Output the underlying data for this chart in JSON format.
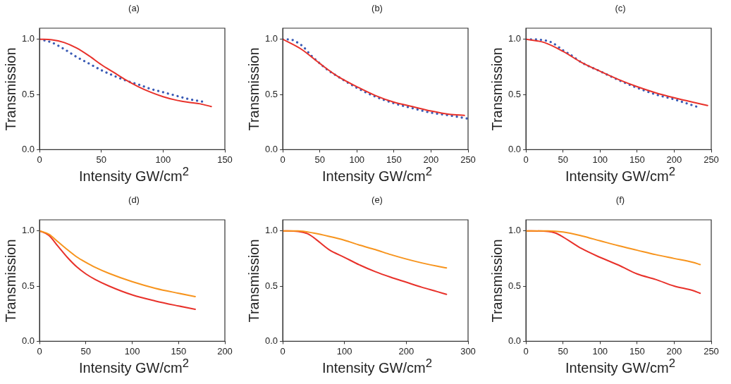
{
  "chart_data": [
    {
      "type": "line",
      "title": "(a)",
      "xlabel": "Intensity GW/cm$^{2}$",
      "ylabel": "Transmission",
      "xlim": [
        0,
        150
      ],
      "xticks": [
        0,
        50,
        100,
        150
      ],
      "ylim": [
        0,
        1.1
      ],
      "yticks": [
        {
          "value": 0,
          "label": "0.0"
        },
        {
          "value": 0.5,
          "label": "0.5"
        },
        {
          "value": 1,
          "label": "1.0"
        }
      ],
      "grid": false,
      "legend": false,
      "marker": "none",
      "series": [
        {
          "color": "#e8312a",
          "line_style": "solid",
          "x": [
            0,
            10,
            20,
            30,
            40,
            50,
            60,
            70,
            80,
            90,
            100,
            110,
            120,
            130,
            139
          ],
          "values": [
            1.0,
            0.995,
            0.97,
            0.92,
            0.85,
            0.77,
            0.7,
            0.63,
            0.57,
            0.52,
            0.48,
            0.45,
            0.43,
            0.415,
            0.39
          ]
        },
        {
          "color": "#3a5bb5",
          "line_style": "dotted",
          "x": [
            0,
            10,
            20,
            30,
            40,
            50,
            60,
            70,
            80,
            90,
            100,
            110,
            120,
            134
          ],
          "values": [
            1.0,
            0.97,
            0.91,
            0.84,
            0.78,
            0.72,
            0.67,
            0.625,
            0.59,
            0.55,
            0.52,
            0.49,
            0.46,
            0.43
          ]
        }
      ]
    },
    {
      "type": "line",
      "title": "(b)",
      "xlabel": "Intensity GW/cm$^{2}$",
      "ylabel": "Transmission",
      "xlim": [
        0,
        250
      ],
      "xticks": [
        0,
        50,
        100,
        150,
        200,
        250
      ],
      "ylim": [
        0,
        1.1
      ],
      "yticks": [
        {
          "value": 0,
          "label": "0.0"
        },
        {
          "value": 0.5,
          "label": "0.5"
        },
        {
          "value": 1,
          "label": "1.0"
        }
      ],
      "grid": false,
      "legend": false,
      "marker": "none",
      "series": [
        {
          "color": "#e8312a",
          "line_style": "solid",
          "x": [
            0,
            25,
            50,
            75,
            100,
            125,
            150,
            175,
            200,
            225,
            245
          ],
          "values": [
            1.0,
            0.91,
            0.78,
            0.66,
            0.57,
            0.49,
            0.43,
            0.39,
            0.35,
            0.32,
            0.31
          ]
        },
        {
          "color": "#3a5bb5",
          "line_style": "dotted",
          "x": [
            0,
            12,
            20,
            28,
            38,
            46,
            60,
            75,
            100,
            125,
            150,
            175,
            200,
            225,
            250
          ],
          "values": [
            1.0,
            0.995,
            0.97,
            0.93,
            0.855,
            0.805,
            0.725,
            0.66,
            0.56,
            0.48,
            0.42,
            0.375,
            0.335,
            0.31,
            0.28
          ]
        }
      ]
    },
    {
      "type": "line",
      "title": "(c)",
      "xlabel": "Intensity GW/cm$^{2}$",
      "ylabel": "Transmission",
      "xlim": [
        0,
        250
      ],
      "xticks": [
        0,
        50,
        100,
        150,
        200,
        250
      ],
      "ylim": [
        0,
        1.1
      ],
      "yticks": [
        {
          "value": 0,
          "label": "0.0"
        },
        {
          "value": 0.5,
          "label": "0.5"
        },
        {
          "value": 1,
          "label": "1.0"
        }
      ],
      "grid": false,
      "legend": false,
      "marker": "none",
      "series": [
        {
          "color": "#e8312a",
          "line_style": "solid",
          "x": [
            0,
            25,
            50,
            75,
            100,
            125,
            150,
            175,
            200,
            225,
            245
          ],
          "values": [
            1.0,
            0.97,
            0.89,
            0.79,
            0.71,
            0.635,
            0.57,
            0.515,
            0.47,
            0.43,
            0.4
          ]
        },
        {
          "color": "#3a5bb5",
          "line_style": "dotted",
          "x": [
            0,
            20,
            35,
            50,
            60,
            75,
            100,
            125,
            150,
            175,
            200,
            230
          ],
          "values": [
            1.0,
            0.995,
            0.97,
            0.9,
            0.86,
            0.79,
            0.71,
            0.63,
            0.56,
            0.5,
            0.455,
            0.39
          ]
        }
      ]
    },
    {
      "type": "line",
      "title": "(d)",
      "xlabel": "Intensity GW/cm$^{2}$",
      "ylabel": "Transmission",
      "xlim": [
        0,
        200
      ],
      "xticks": [
        0,
        50,
        100,
        150,
        200
      ],
      "ylim": [
        0,
        1.1
      ],
      "yticks": [
        {
          "value": 0,
          "label": "0.0"
        },
        {
          "value": 0.5,
          "label": "0.5"
        },
        {
          "value": 1,
          "label": "1.0"
        }
      ],
      "grid": false,
      "legend": false,
      "marker": "none",
      "series": [
        {
          "color": "#f7941d",
          "line_style": "solid",
          "x": [
            0,
            10,
            20,
            30,
            40,
            50,
            60,
            75,
            100,
            125,
            150,
            168
          ],
          "values": [
            1.0,
            0.97,
            0.9,
            0.83,
            0.765,
            0.715,
            0.67,
            0.615,
            0.54,
            0.48,
            0.435,
            0.405
          ]
        },
        {
          "color": "#e8312a",
          "line_style": "solid",
          "x": [
            0,
            10,
            20,
            30,
            40,
            50,
            60,
            75,
            100,
            125,
            150,
            168
          ],
          "values": [
            1.0,
            0.96,
            0.86,
            0.76,
            0.675,
            0.61,
            0.56,
            0.5,
            0.42,
            0.365,
            0.32,
            0.29
          ]
        }
      ]
    },
    {
      "type": "line",
      "title": "(e)",
      "xlabel": "Intensity GW/cm$^{2}$",
      "ylabel": "Transmission",
      "xlim": [
        0,
        300
      ],
      "xticks": [
        0,
        100,
        200,
        300
      ],
      "ylim": [
        0,
        1.1
      ],
      "yticks": [
        {
          "value": 0,
          "label": "0.0"
        },
        {
          "value": 0.5,
          "label": "0.5"
        },
        {
          "value": 1,
          "label": "1.0"
        }
      ],
      "grid": false,
      "legend": false,
      "marker": "none",
      "series": [
        {
          "color": "#f7941d",
          "line_style": "solid",
          "x": [
            0,
            25,
            50,
            75,
            100,
            125,
            150,
            175,
            200,
            225,
            250,
            265
          ],
          "values": [
            1.0,
            1.0,
            0.98,
            0.95,
            0.915,
            0.87,
            0.83,
            0.785,
            0.745,
            0.71,
            0.68,
            0.665
          ]
        },
        {
          "color": "#e8312a",
          "line_style": "solid",
          "x": [
            0,
            25,
            40,
            50,
            75,
            100,
            125,
            150,
            175,
            200,
            225,
            250,
            265
          ],
          "values": [
            1.0,
            0.995,
            0.975,
            0.94,
            0.83,
            0.76,
            0.69,
            0.63,
            0.58,
            0.535,
            0.49,
            0.45,
            0.425
          ]
        }
      ]
    },
    {
      "type": "line",
      "title": "(f)",
      "xlabel": "Intensity GW/cm$^{2}$",
      "ylabel": "Transmission",
      "xlim": [
        0,
        250
      ],
      "xticks": [
        0,
        50,
        100,
        150,
        200,
        250
      ],
      "ylim": [
        0,
        1.1
      ],
      "yticks": [
        {
          "value": 0,
          "label": "0.0"
        },
        {
          "value": 0.5,
          "label": "0.5"
        },
        {
          "value": 1,
          "label": "1.0"
        }
      ],
      "grid": false,
      "legend": false,
      "marker": "none",
      "series": [
        {
          "color": "#f7941d",
          "line_style": "solid",
          "x": [
            0,
            30,
            50,
            75,
            100,
            125,
            150,
            175,
            200,
            225,
            235
          ],
          "values": [
            1.0,
            1.0,
            0.99,
            0.955,
            0.91,
            0.865,
            0.825,
            0.785,
            0.75,
            0.715,
            0.695
          ]
        },
        {
          "color": "#e8312a",
          "line_style": "solid",
          "x": [
            0,
            30,
            40,
            50,
            75,
            100,
            125,
            150,
            175,
            200,
            225,
            235
          ],
          "values": [
            1.0,
            0.995,
            0.98,
            0.945,
            0.84,
            0.76,
            0.69,
            0.61,
            0.56,
            0.5,
            0.46,
            0.435
          ]
        }
      ]
    }
  ]
}
